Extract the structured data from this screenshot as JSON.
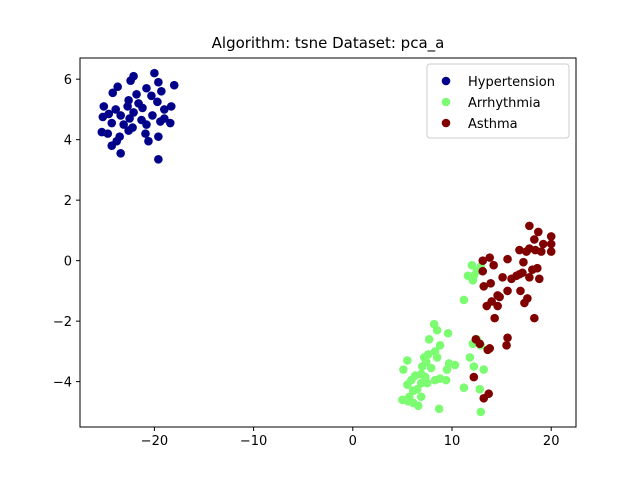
{
  "chart_data": {
    "type": "scatter",
    "title": "Algorithm: tsne Dataset: pca_a",
    "xlabel": "",
    "ylabel": "",
    "xlim": [
      -27.5,
      22.5
    ],
    "ylim": [
      -5.5,
      6.7
    ],
    "x_ticks": [
      -20,
      -10,
      0,
      10,
      20
    ],
    "y_ticks": [
      -4,
      -2,
      0,
      2,
      4,
      6
    ],
    "x_tick_labels": [
      "−20",
      "−10",
      "0",
      "10",
      "20"
    ],
    "y_tick_labels": [
      "−4",
      "−2",
      "0",
      "2",
      "4",
      "6"
    ],
    "grid": false,
    "legend_position": "top-right",
    "series": [
      {
        "name": "Hypertension",
        "color": "#00008b",
        "points": [
          [
            -22.1,
            6.1
          ],
          [
            -20.0,
            6.2
          ],
          [
            -22.4,
            5.95
          ],
          [
            -19.6,
            5.9
          ],
          [
            -18.0,
            5.8
          ],
          [
            -23.7,
            5.75
          ],
          [
            -20.8,
            5.7
          ],
          [
            -24.2,
            5.55
          ],
          [
            -19.3,
            5.6
          ],
          [
            -21.8,
            5.5
          ],
          [
            -20.3,
            5.45
          ],
          [
            -22.6,
            5.3
          ],
          [
            -19.7,
            5.25
          ],
          [
            -21.6,
            5.2
          ],
          [
            -25.1,
            5.1
          ],
          [
            -22.7,
            5.1
          ],
          [
            -18.3,
            5.1
          ],
          [
            -23.9,
            5.0
          ],
          [
            -21.2,
            5.05
          ],
          [
            -19.0,
            5.0
          ],
          [
            -22.1,
            4.9
          ],
          [
            -24.6,
            4.85
          ],
          [
            -20.2,
            4.8
          ],
          [
            -23.4,
            4.8
          ],
          [
            -25.2,
            4.75
          ],
          [
            -22.5,
            4.7
          ],
          [
            -19.0,
            4.7
          ],
          [
            -21.3,
            4.65
          ],
          [
            -19.4,
            4.6
          ],
          [
            -24.3,
            4.55
          ],
          [
            -18.4,
            4.55
          ],
          [
            -23.1,
            4.5
          ],
          [
            -20.8,
            4.5
          ],
          [
            -22.2,
            4.4
          ],
          [
            -25.3,
            4.25
          ],
          [
            -24.7,
            4.2
          ],
          [
            -22.6,
            4.3
          ],
          [
            -20.9,
            4.2
          ],
          [
            -23.5,
            4.1
          ],
          [
            -19.6,
            4.1
          ],
          [
            -20.6,
            3.95
          ],
          [
            -23.8,
            3.95
          ],
          [
            -24.3,
            3.8
          ],
          [
            -23.4,
            3.55
          ],
          [
            -19.6,
            3.35
          ]
        ]
      },
      {
        "name": "Arrhythmia",
        "color": "#7cfc71",
        "points": [
          [
            12.0,
            -0.15
          ],
          [
            12.9,
            -0.2
          ],
          [
            12.5,
            -0.35
          ],
          [
            11.6,
            -0.5
          ],
          [
            12.2,
            -0.5
          ],
          [
            12.1,
            -0.65
          ],
          [
            11.2,
            -1.3
          ],
          [
            8.2,
            -2.1
          ],
          [
            8.5,
            -2.3
          ],
          [
            9.6,
            -2.4
          ],
          [
            7.7,
            -2.6
          ],
          [
            12.5,
            -2.6
          ],
          [
            8.8,
            -2.8
          ],
          [
            12.1,
            -2.75
          ],
          [
            12.9,
            -2.8
          ],
          [
            8.3,
            -3.0
          ],
          [
            7.6,
            -3.1
          ],
          [
            7.2,
            -3.2
          ],
          [
            8.5,
            -3.2
          ],
          [
            11.8,
            -3.2
          ],
          [
            5.5,
            -3.3
          ],
          [
            7.4,
            -3.35
          ],
          [
            9.7,
            -3.4
          ],
          [
            10.3,
            -3.45
          ],
          [
            7.0,
            -3.5
          ],
          [
            12.2,
            -3.5
          ],
          [
            7.9,
            -3.55
          ],
          [
            9.5,
            -3.6
          ],
          [
            5.1,
            -3.6
          ],
          [
            13.2,
            -3.6
          ],
          [
            6.9,
            -3.75
          ],
          [
            6.3,
            -3.8
          ],
          [
            7.3,
            -3.85
          ],
          [
            8.8,
            -3.9
          ],
          [
            5.9,
            -3.95
          ],
          [
            9.4,
            -3.95
          ],
          [
            8.3,
            -3.95
          ],
          [
            7.5,
            -4.05
          ],
          [
            6.9,
            -4.05
          ],
          [
            5.5,
            -4.1
          ],
          [
            11.2,
            -4.2
          ],
          [
            6.5,
            -4.25
          ],
          [
            12.8,
            -4.25
          ],
          [
            6.1,
            -4.3
          ],
          [
            5.7,
            -4.5
          ],
          [
            6.9,
            -4.5
          ],
          [
            5.0,
            -4.6
          ],
          [
            5.6,
            -4.65
          ],
          [
            6.1,
            -4.7
          ],
          [
            6.6,
            -4.8
          ],
          [
            8.7,
            -4.9
          ],
          [
            12.9,
            -5.0
          ]
        ]
      },
      {
        "name": "Asthma",
        "color": "#800000",
        "points": [
          [
            17.8,
            1.15
          ],
          [
            18.7,
            0.95
          ],
          [
            20.0,
            0.8
          ],
          [
            18.3,
            0.7
          ],
          [
            19.2,
            0.55
          ],
          [
            20.0,
            0.55
          ],
          [
            17.8,
            0.4
          ],
          [
            18.4,
            0.35
          ],
          [
            16.8,
            0.35
          ],
          [
            17.5,
            0.3
          ],
          [
            19.0,
            0.3
          ],
          [
            20.0,
            0.3
          ],
          [
            13.8,
            0.1
          ],
          [
            13.1,
            0.0
          ],
          [
            15.6,
            0.05
          ],
          [
            17.2,
            -0.05
          ],
          [
            14.2,
            -0.15
          ],
          [
            18.6,
            -0.25
          ],
          [
            18.1,
            -0.3
          ],
          [
            13.1,
            -0.35
          ],
          [
            17.1,
            -0.4
          ],
          [
            16.8,
            -0.45
          ],
          [
            16.5,
            -0.5
          ],
          [
            17.8,
            -0.55
          ],
          [
            18.8,
            -0.6
          ],
          [
            15.1,
            -0.55
          ],
          [
            16.0,
            -0.6
          ],
          [
            13.9,
            -0.75
          ],
          [
            13.2,
            -0.85
          ],
          [
            15.6,
            -1.0
          ],
          [
            16.9,
            -1.0
          ],
          [
            14.6,
            -1.15
          ],
          [
            14.8,
            -1.2
          ],
          [
            17.6,
            -1.25
          ],
          [
            14.0,
            -1.35
          ],
          [
            17.3,
            -1.4
          ],
          [
            13.5,
            -1.5
          ],
          [
            14.6,
            -1.5
          ],
          [
            14.3,
            -1.9
          ],
          [
            18.3,
            -1.9
          ],
          [
            15.6,
            -2.55
          ],
          [
            12.4,
            -2.6
          ],
          [
            15.5,
            -2.8
          ],
          [
            12.8,
            -2.75
          ],
          [
            13.8,
            -2.9
          ],
          [
            13.6,
            -2.95
          ],
          [
            12.2,
            -3.85
          ],
          [
            13.7,
            -4.4
          ],
          [
            13.2,
            -4.55
          ]
        ]
      }
    ]
  }
}
